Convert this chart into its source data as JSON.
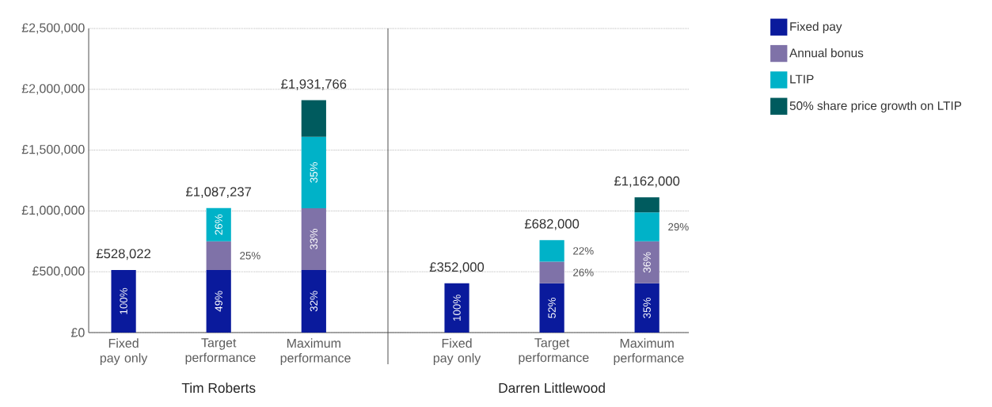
{
  "chart_data": [
    {
      "type": "bar",
      "stacked": true,
      "xlabel": "Tim Roberts",
      "categories": [
        "Fixed pay only",
        "Target performance",
        "Maximum performance"
      ],
      "ylim": [
        0,
        2500000
      ],
      "yticks": [
        {
          "value": 0,
          "label": "£0"
        },
        {
          "value": 500000,
          "label": "£500,000"
        },
        {
          "value": 1000000,
          "label": "£1,000,000"
        },
        {
          "value": 1500000,
          "label": "£1,500,000"
        },
        {
          "value": 2000000,
          "label": "£2,000,000"
        },
        {
          "value": 2500000,
          "label": "£2,500,000"
        }
      ],
      "grid": "y",
      "series": [
        {
          "color": "#0a1a9c",
          "values": [
            515000,
            515000,
            515000
          ]
        },
        {
          "color": "#7f72a8",
          "values": [
            null,
            235000,
            507000
          ]
        },
        {
          "color": "#00b2c8",
          "values": [
            null,
            274000,
            588000
          ]
        },
        {
          "color": "#005b5e",
          "values": [
            null,
            null,
            300000
          ]
        }
      ],
      "annotations": [
        {
          "text": "£528,022",
          "x": "Fixed pay only",
          "y": 515000
        },
        {
          "text": "£1,087,237",
          "x": "Target performance",
          "y": 1024000
        },
        {
          "text": "£1,931,766",
          "x": "Maximum performance",
          "y": 1910000
        },
        {
          "text": "100%",
          "x": "Fixed pay only",
          "y": 515000
        },
        {
          "text": "49%",
          "x": "Target performance",
          "y": 515000
        },
        {
          "text": "25%",
          "x": "Target performance",
          "y": 750000
        },
        {
          "text": "26%",
          "x": "Target performance",
          "y": 1024000
        },
        {
          "text": "32%",
          "x": "Maximum performance",
          "y": 515000
        },
        {
          "text": "33%",
          "x": "Maximum performance",
          "y": 1022000
        },
        {
          "text": "35%",
          "x": "Maximum performance",
          "y": 1610000
        }
      ]
    },
    {
      "type": "bar",
      "stacked": true,
      "xlabel": "Darren Littlewood",
      "categories": [
        "Fixed pay only",
        "Target performance",
        "Maximum performance"
      ],
      "ylim": [
        0,
        2500000
      ],
      "grid": "y",
      "tick_labels": "x",
      "legend": "top right",
      "series": [
        {
          "name": "Fixed pay",
          "color": "#0a1a9c",
          "values": [
            405000,
            405000,
            405000
          ]
        },
        {
          "name": "Annual bonus",
          "color": "#7f72a8",
          "values": [
            null,
            178000,
            345000
          ]
        },
        {
          "name": "LTIP",
          "color": "#00b2c8",
          "values": [
            null,
            177000,
            238000
          ]
        },
        {
          "name": "50% share price growth on LTIP",
          "color": "#005b5e",
          "values": [
            null,
            null,
            124000
          ]
        }
      ],
      "annotations": [
        {
          "text": "£352,000",
          "x": "Fixed pay only",
          "y": 405000
        },
        {
          "text": "£682,000",
          "x": "Target performance",
          "y": 760000
        },
        {
          "text": "£1,162,000",
          "x": "Maximum performance",
          "y": 1112000
        },
        {
          "text": "100%",
          "x": "Fixed pay only",
          "y": 405000
        },
        {
          "text": "52%",
          "x": "Target performance",
          "y": 405000
        },
        {
          "text": "26%",
          "x": "Target performance",
          "y": 583000
        },
        {
          "text": "22%",
          "x": "Target performance",
          "y": 760000
        },
        {
          "text": "35%",
          "x": "Maximum performance",
          "y": 405000
        },
        {
          "text": "36%",
          "x": "Maximum performance",
          "y": 750000
        },
        {
          "text": "29%",
          "x": "Maximum performance",
          "y": 988000
        }
      ]
    }
  ]
}
